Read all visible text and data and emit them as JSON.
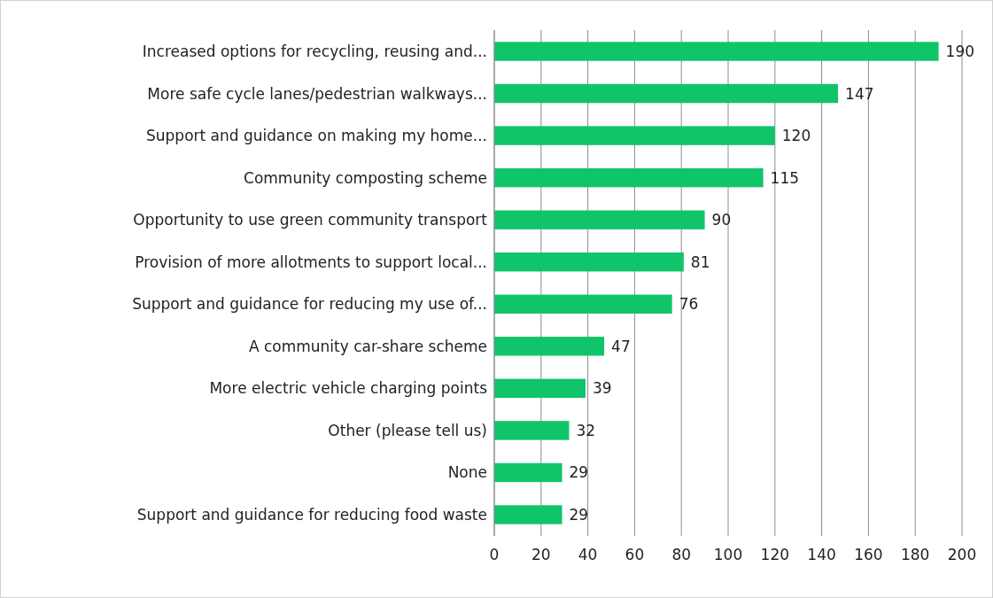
{
  "chart_data": {
    "type": "bar",
    "orientation": "horizontal",
    "categories": [
      "Increased options for recycling, reusing and...",
      "More safe cycle lanes/pedestrian walkways...",
      "Support and guidance on making my home...",
      "Community composting scheme",
      "Opportunity to use green community transport",
      "Provision of more allotments to support local...",
      "Support and guidance for reducing my use of...",
      "A community car-share scheme",
      "More electric vehicle charging points",
      "Other (please tell us)",
      "None",
      "Support and guidance for reducing food waste"
    ],
    "values": [
      190,
      147,
      120,
      115,
      90,
      81,
      76,
      47,
      39,
      32,
      29,
      29
    ],
    "color": "#10c46a",
    "xlim": [
      0,
      200
    ],
    "xticks": [
      0,
      20,
      40,
      60,
      80,
      100,
      120,
      140,
      160,
      180,
      200
    ],
    "grid": "x",
    "data_labels": true
  }
}
